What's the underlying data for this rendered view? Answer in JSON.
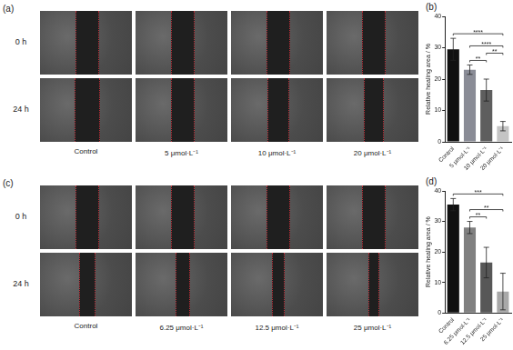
{
  "image_panels": [
    {
      "label": "(a)",
      "rows": [
        "0 h",
        "24 h"
      ],
      "columns": [
        "Control",
        "5 μmol·L⁻¹",
        "10 μmol·L⁻¹",
        "20 μmol·L⁻¹"
      ]
    },
    {
      "label": "(c)",
      "rows": [
        "0 h",
        "24 h"
      ],
      "columns": [
        "Control",
        "6.25 μmol·L⁻¹",
        "12.5 μmol·L⁻¹",
        "25 μmol·L⁻¹"
      ]
    }
  ],
  "chart_data": [
    {
      "type": "bar",
      "title": "(b)",
      "y_label": "Relative healing area / %",
      "categories": [
        "Control",
        "5 μmol·L⁻¹",
        "10 μmol·L⁻¹",
        "20 μmol·L⁻¹"
      ],
      "values": [
        29.5,
        23,
        16.5,
        5
      ],
      "errors": [
        3.5,
        1.5,
        3.5,
        1.5
      ],
      "colors": [
        "#111111",
        "#8a8c96",
        "#5e5e5e",
        "#c4c4c4"
      ],
      "ylim": [
        0,
        40
      ],
      "yticks": [
        0,
        10,
        20,
        30,
        40
      ],
      "grid": false,
      "significance": [
        {
          "between": [
            "5 μmol·L⁻¹",
            "10 μmol·L⁻¹"
          ],
          "label": "**"
        },
        {
          "between": [
            "10 μmol·L⁻¹",
            "20 μmol·L⁻¹"
          ],
          "label": "**"
        },
        {
          "between": [
            "5 μmol·L⁻¹",
            "20 μmol·L⁻¹"
          ],
          "label": "****"
        },
        {
          "between": [
            "Control",
            "20 μmol·L⁻¹"
          ],
          "label": "****"
        }
      ]
    },
    {
      "type": "bar",
      "title": "(d)",
      "y_label": "Relative healing area / %",
      "categories": [
        "Control",
        "6.25 μmol·L⁻¹",
        "12.5 μmol·L⁻¹",
        "25 μmol·L⁻¹"
      ],
      "values": [
        35.5,
        28,
        16.5,
        7
      ],
      "errors": [
        2,
        2,
        5,
        6
      ],
      "colors": [
        "#111111",
        "#808080",
        "#575757",
        "#a8a8a8"
      ],
      "ylim": [
        0,
        40
      ],
      "yticks": [
        0,
        10,
        20,
        30,
        40
      ],
      "grid": false,
      "significance": [
        {
          "between": [
            "6.25 μmol·L⁻¹",
            "12.5 μmol·L⁻¹"
          ],
          "label": "**"
        },
        {
          "between": [
            "6.25 μmol·L⁻¹",
            "25 μmol·L⁻¹"
          ],
          "label": "**"
        },
        {
          "between": [
            "Control",
            "25 μmol·L⁻¹"
          ],
          "label": "***"
        }
      ]
    }
  ]
}
